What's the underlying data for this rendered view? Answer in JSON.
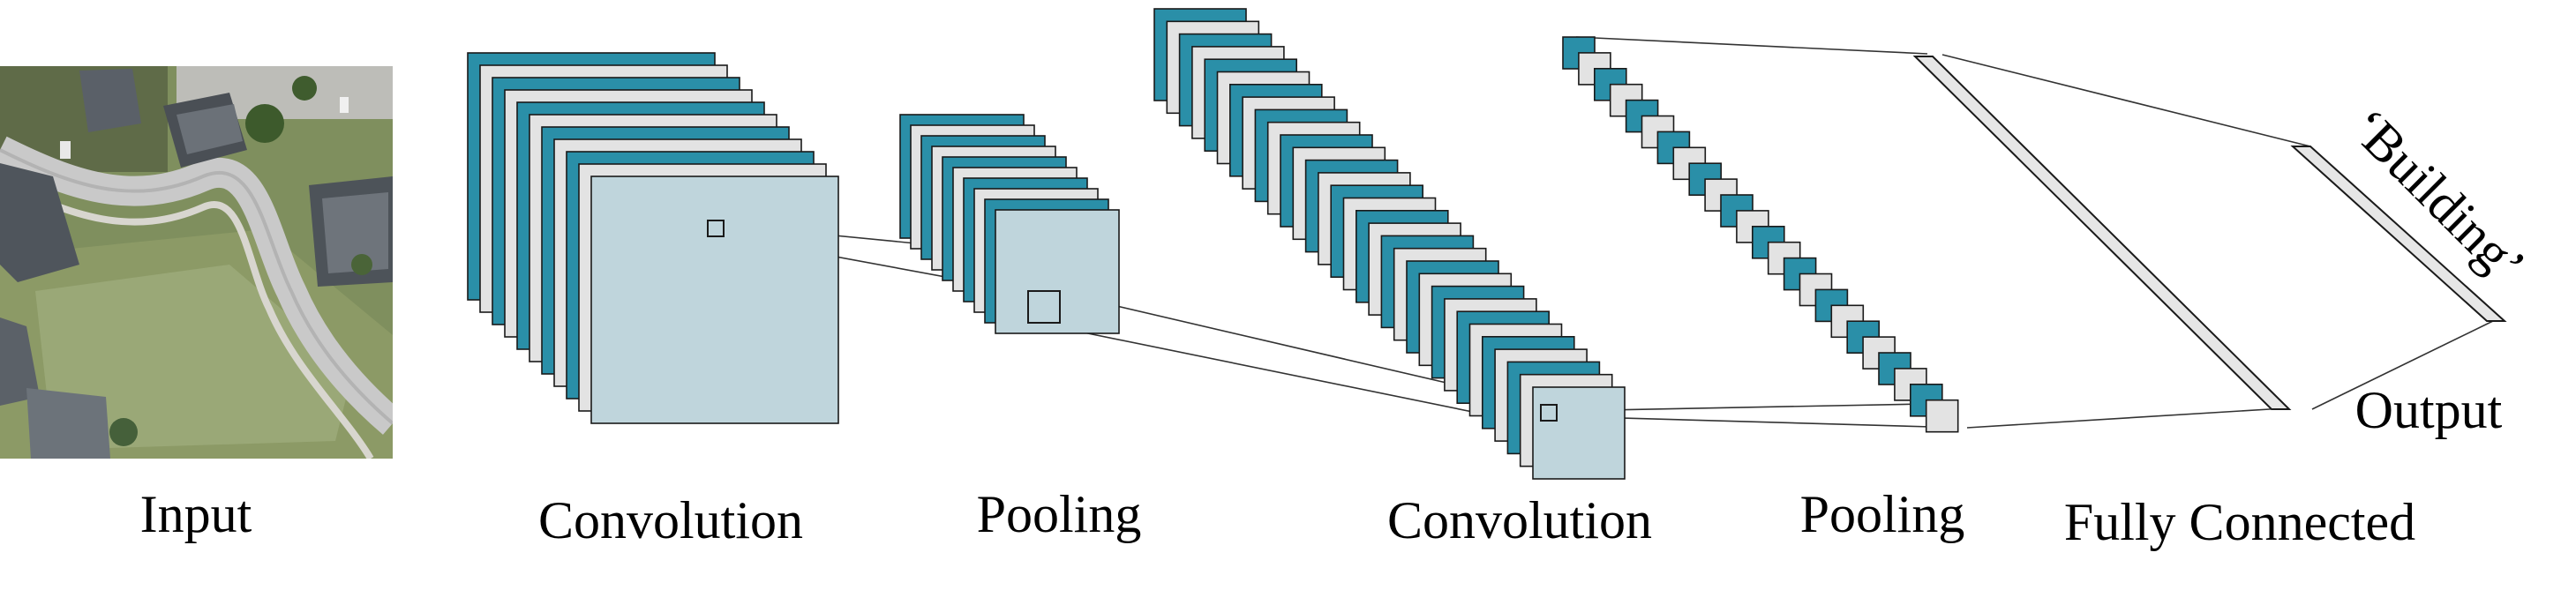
{
  "stages": [
    {
      "id": "input",
      "label": "Input"
    },
    {
      "id": "conv1",
      "label": "Convolution"
    },
    {
      "id": "pool1",
      "label": "Pooling"
    },
    {
      "id": "conv2",
      "label": "Convolution"
    },
    {
      "id": "pool2",
      "label": "Pooling"
    },
    {
      "id": "fc",
      "label": "Fully Connected"
    }
  ],
  "output": {
    "label": "Output",
    "class_label": "‘Building’"
  },
  "colors": {
    "feature_map_front": "#2a8fa8",
    "feature_map_back": "#e3e3e3",
    "feature_map_highlight": "#bfd5dc",
    "stroke": "#1a1a1a",
    "fc_layer": "#e6e6e6"
  }
}
